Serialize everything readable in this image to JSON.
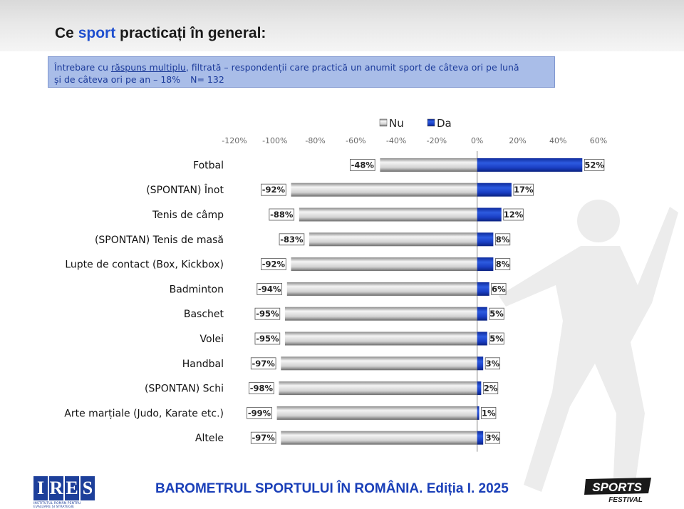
{
  "title": {
    "plain": "Ce ",
    "highlight": "sport",
    "rest": " practicați în general:"
  },
  "question": {
    "prefix": "Întrebare cu ",
    "underlined": "răspuns multiplu",
    "text_line1": ", filtrată – respondenții care practică un anumit sport de câteva ori pe lună",
    "text_line2": "și de câteva ori pe an – 18%",
    "sample": "N= 132"
  },
  "colors": {
    "accent": "#1f4fcf",
    "bar_da": "#1a3fc4",
    "bar_nu": "#c8c8c8",
    "box": "#a9bde8"
  },
  "chart_data": {
    "type": "bar",
    "orientation": "horizontal",
    "stacked": "diverging",
    "legend": [
      "Nu",
      "Da"
    ],
    "legend_position": "top",
    "xlim": [
      -120,
      60
    ],
    "ticks": [
      -120,
      -100,
      -80,
      -60,
      -40,
      -20,
      0,
      20,
      40,
      60
    ],
    "tick_labels": [
      "-120%",
      "-100%",
      "-80%",
      "-60%",
      "-40%",
      "-20%",
      "0%",
      "20%",
      "40%",
      "60%"
    ],
    "categories": [
      "Fotbal",
      "(SPONTAN) Înot",
      "Tenis de câmp",
      "(SPONTAN) Tenis de masă",
      "Lupte de contact (Box, Kickbox)",
      "Badminton",
      "Baschet",
      "Volei",
      "Handbal",
      "(SPONTAN) Schi",
      "Arte marțiale (Judo, Karate etc.)",
      "Altele"
    ],
    "series": [
      {
        "name": "Nu",
        "values": [
          -48,
          -92,
          -88,
          -83,
          -92,
          -94,
          -95,
          -95,
          -97,
          -98,
          -99,
          -97
        ],
        "labels": [
          "-48%",
          "-92%",
          "-88%",
          "-83%",
          "-92%",
          "-94%",
          "-95%",
          "-95%",
          "-97%",
          "-98%",
          "-99%",
          "-97%"
        ]
      },
      {
        "name": "Da",
        "values": [
          52,
          17,
          12,
          8,
          8,
          6,
          5,
          5,
          3,
          2,
          1,
          3
        ],
        "labels": [
          "52%",
          "17%",
          "12%",
          "8%",
          "8%",
          "6%",
          "5%",
          "5%",
          "3%",
          "2%",
          "1%",
          "3%"
        ]
      }
    ]
  },
  "footer": {
    "title": "BAROMETRUL SPORTULUI ÎN ROMÂNIA. Ediția I. 2025",
    "ires_letters": [
      "I",
      "R",
      "E",
      "S"
    ],
    "ires_subtitle": "INSTITUTUL ROMÂN PENTRU EVALUARE ȘI STRATEGIE",
    "sports_logo_top": "SPORTS",
    "sports_logo_bottom": "FESTIVAL"
  }
}
